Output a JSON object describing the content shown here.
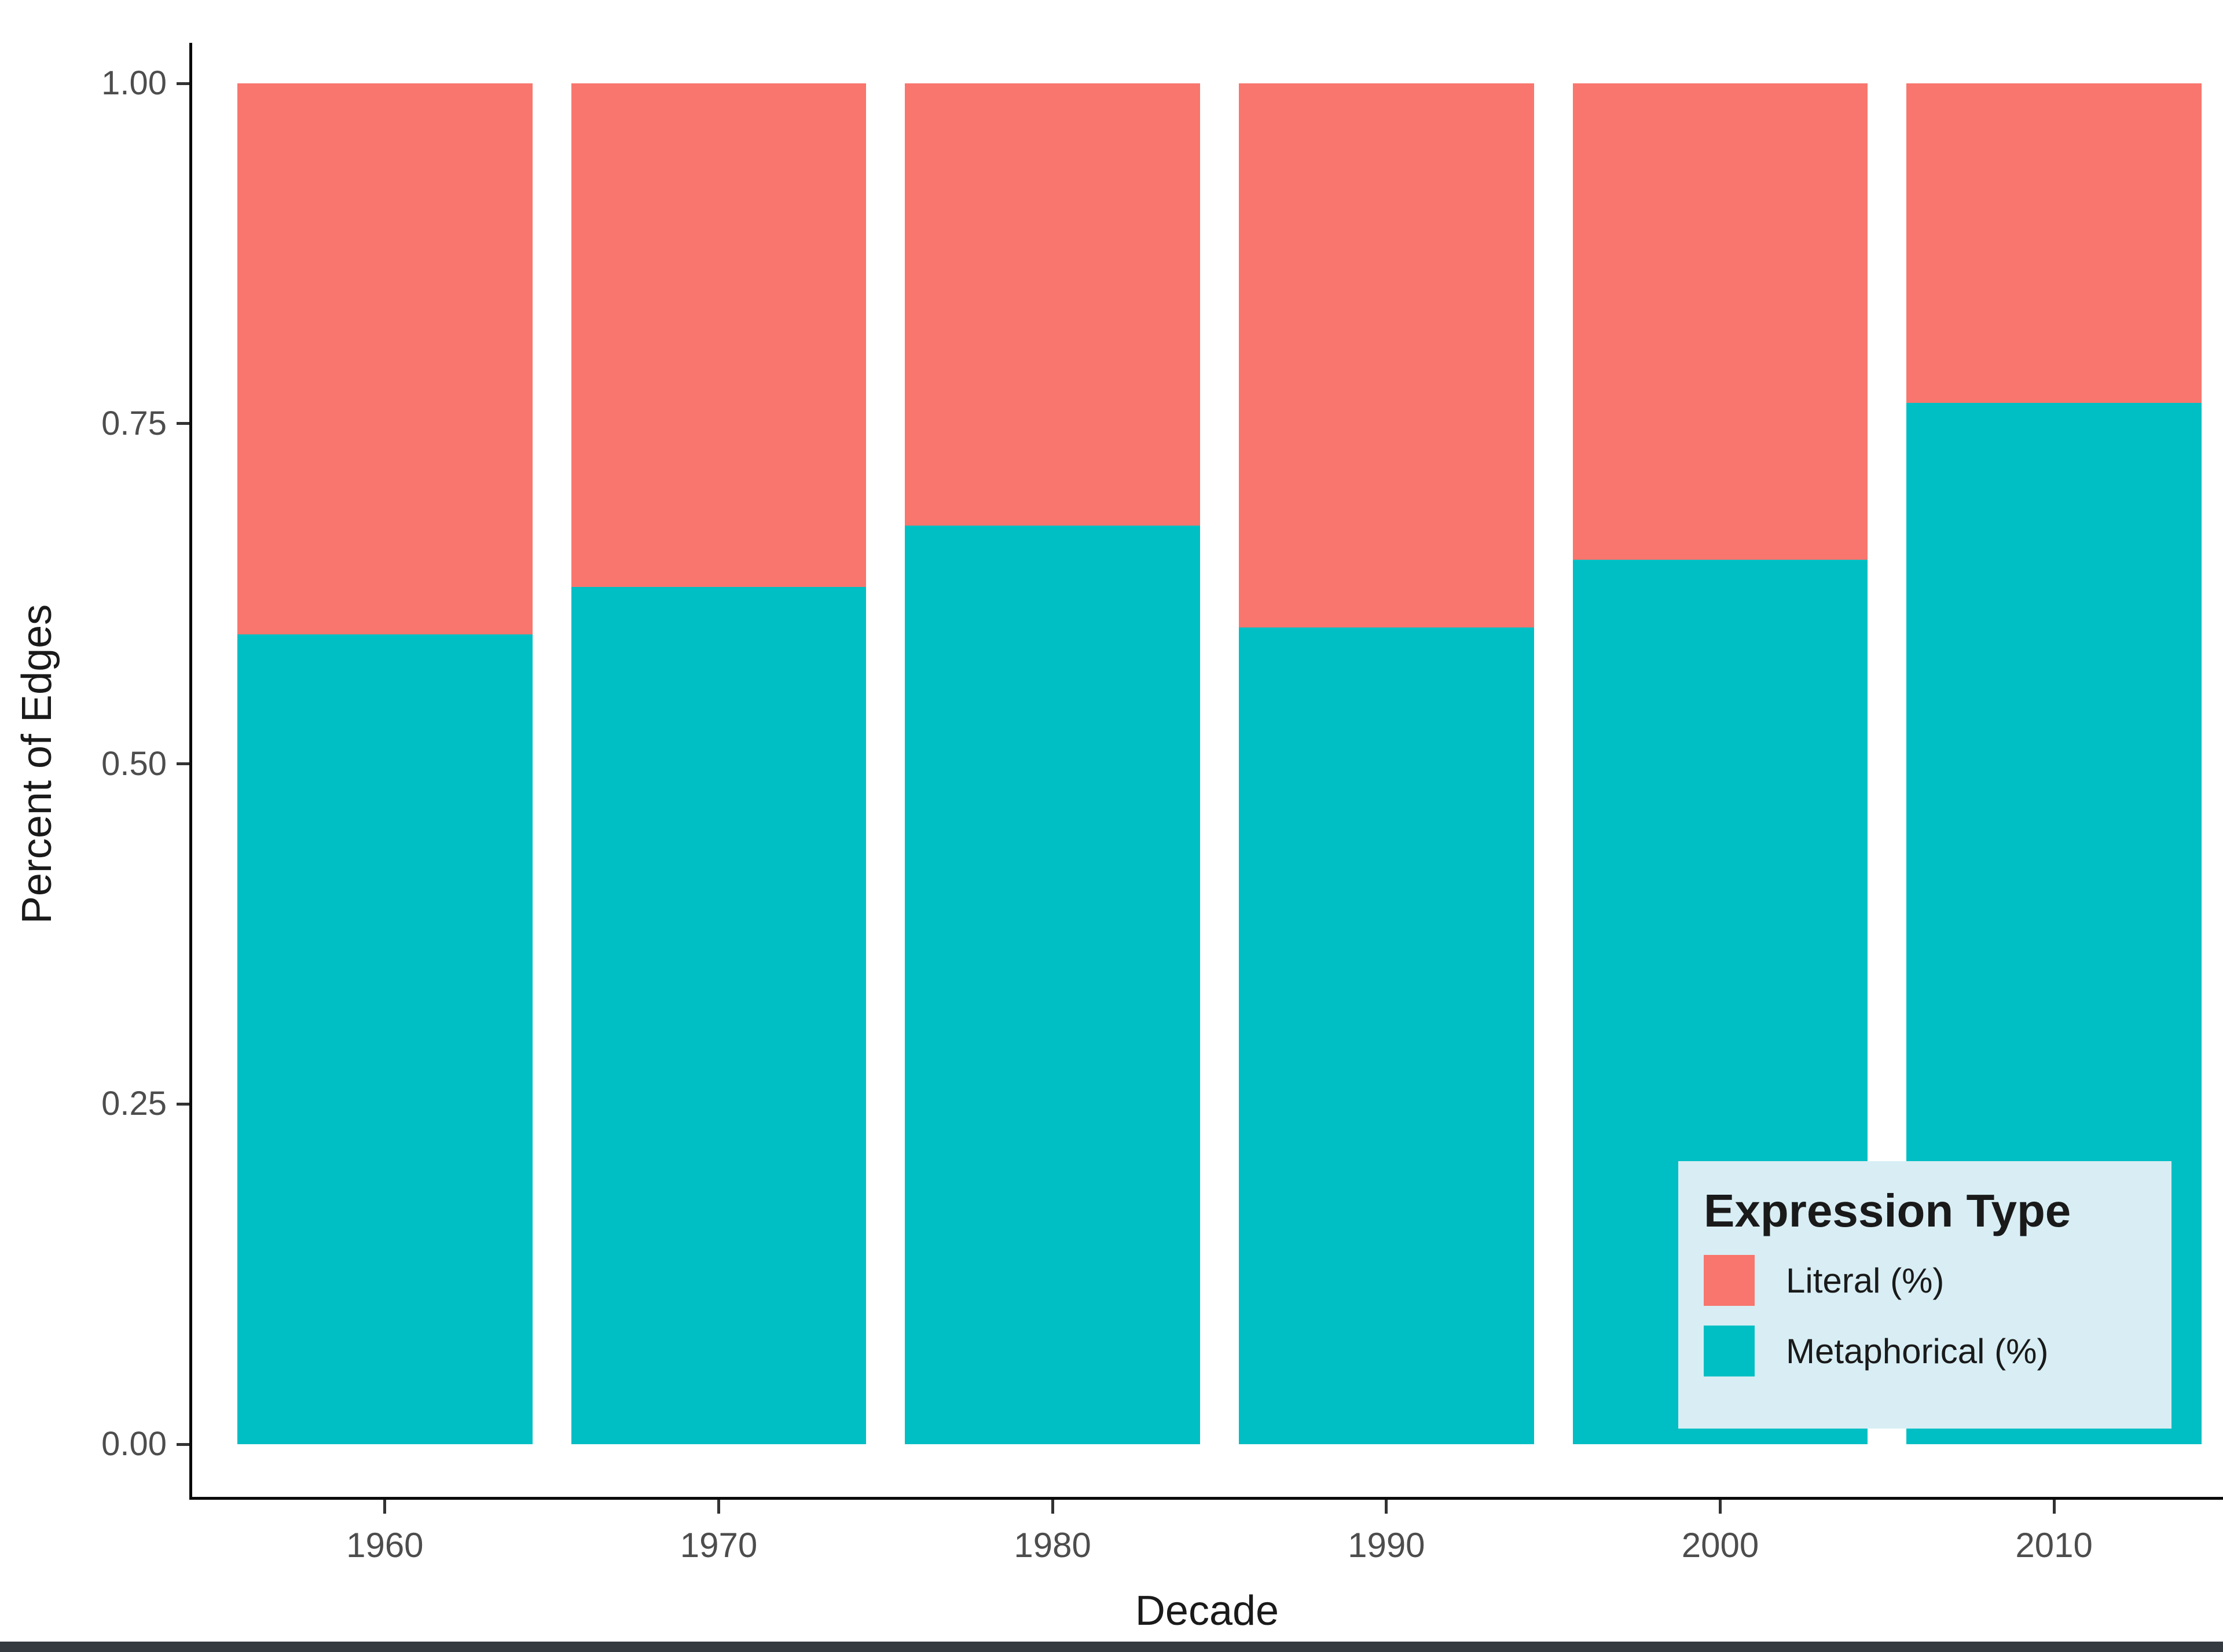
{
  "chart_data": {
    "type": "bar",
    "stacked": true,
    "title": "",
    "xlabel": "Decade",
    "ylabel": "Percent of Edges",
    "categories": [
      "1960",
      "1970",
      "1980",
      "1990",
      "2000",
      "2010"
    ],
    "series": [
      {
        "name": "Metaphorical (%)",
        "color": "#00BFC4",
        "values": [
          0.595,
          0.63,
          0.675,
          0.6,
          0.65,
          0.765
        ]
      },
      {
        "name": "Literal (%)",
        "color": "#F8766D",
        "values": [
          0.405,
          0.37,
          0.325,
          0.4,
          0.35,
          0.235
        ]
      }
    ],
    "ylim": [
      0,
      1
    ],
    "grid": false,
    "yticks": [
      {
        "value": 0.0,
        "label": "0.00"
      },
      {
        "value": 0.25,
        "label": "0.25"
      },
      {
        "value": 0.5,
        "label": "0.50"
      },
      {
        "value": 0.75,
        "label": "0.75"
      },
      {
        "value": 1.0,
        "label": "1.00"
      }
    ],
    "legend": {
      "title": "Expression Type",
      "position": "bottom-right",
      "background": "#D8EEF4",
      "entries": [
        {
          "label": "Literal (%)",
          "color": "#F8766D"
        },
        {
          "label": "Metaphorical (%)",
          "color": "#00BFC4"
        }
      ]
    }
  },
  "page": {
    "bottom_edge_color": "#343A40"
  }
}
